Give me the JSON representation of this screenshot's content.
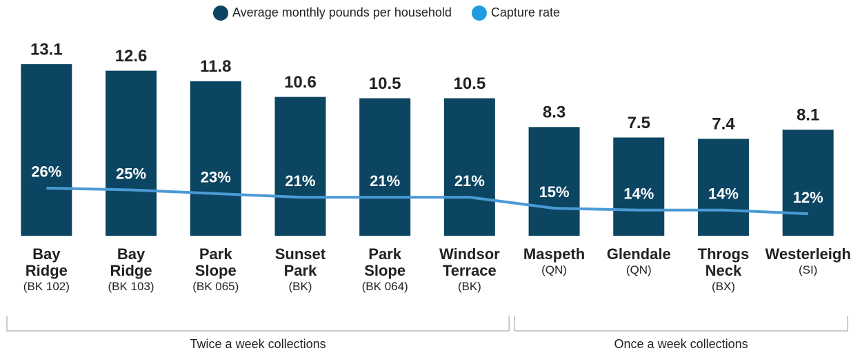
{
  "chart_data": {
    "type": "bar",
    "categories": [
      "Bay Ridge",
      "Bay Ridge",
      "Park Slope",
      "Sunset Park",
      "Park Slope",
      "Windsor Terrace",
      "Maspeth",
      "Glendale",
      "Throgs Neck",
      "Westerleigh"
    ],
    "category_codes": [
      "(BK 102)",
      "(BK 103)",
      "(BK 065)",
      "(BK)",
      "(BK 064)",
      "(BK)",
      "(QN)",
      "(QN)",
      "(BX)",
      "(SI)"
    ],
    "series": [
      {
        "name": "Average monthly pounds per household",
        "type": "bar",
        "color": "#0b4561",
        "legend_color": "#0b4561",
        "values": [
          13.1,
          12.6,
          11.8,
          10.6,
          10.5,
          10.5,
          8.3,
          7.5,
          7.4,
          8.1
        ]
      },
      {
        "name": "Capture rate",
        "type": "line",
        "axis": "y2",
        "color": "#4b9ad6",
        "legend_color": "#1f9ce0",
        "values": [
          26,
          25,
          23,
          21,
          21,
          21,
          15,
          14,
          14,
          12
        ],
        "value_labels": [
          "26%",
          "25%",
          "23%",
          "21%",
          "21%",
          "21%",
          "15%",
          "14%",
          "14%",
          "12%"
        ]
      }
    ],
    "ylim": [
      0,
      14
    ],
    "y2lim": [
      0,
      100
    ],
    "legend": "top",
    "groups": [
      {
        "label": "Twice a week collections",
        "size": 6
      },
      {
        "label": "Once a week collections",
        "size": 4
      }
    ]
  }
}
